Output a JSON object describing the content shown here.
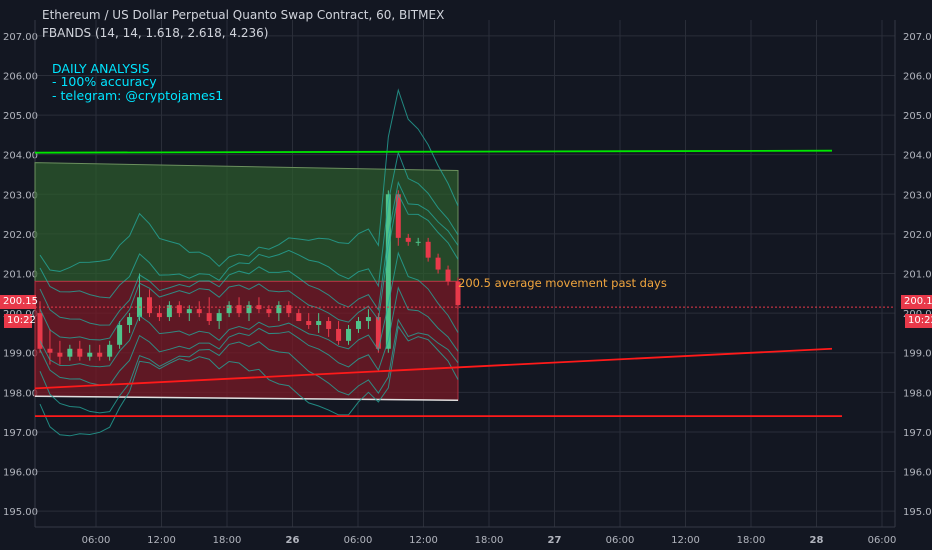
{
  "header": {
    "title": "Ethereum / US Dollar Perpetual Quanto Swap Contract, 60, BITMEX",
    "indicator": "FBANDS (14, 14, 1.618, 2.618, 4.236)"
  },
  "analysis": {
    "line1": "DAILY ANALYSIS",
    "line2": "- 100% accuracy",
    "line3": "- telegram: @cryptojames1"
  },
  "note": "200.5 average movement past days",
  "price_badge": {
    "value": "200.15",
    "time": "10:22"
  },
  "colors": {
    "background": "#131722",
    "grid": "#2a2e39",
    "up": "#4fc38a",
    "down": "#e8394a",
    "green_zone": "#2e5e2c",
    "red_zone": "#7a1a26",
    "band": "#26a69a",
    "annotation_text": "#00e5ff",
    "note_text": "#f0a53e"
  },
  "chart_data": {
    "type": "candlestick",
    "title": "Ethereum / US Dollar Perpetual Quanto Swap Contract, 60, BITMEX",
    "ylim": [
      194.6,
      207.4
    ],
    "y_ticks": [
      "207.00",
      "206.00",
      "205.00",
      "204.00",
      "203.00",
      "202.00",
      "201.00",
      "200.00",
      "199.00",
      "198.00",
      "197.00",
      "196.00",
      "195.00"
    ],
    "x_ticks": [
      "06:00",
      "12:00",
      "18:00",
      "26",
      "06:00",
      "12:00",
      "18:00",
      "27",
      "06:00",
      "12:00",
      "18:00",
      "28",
      "06:00"
    ],
    "candles": [
      {
        "o": 200.0,
        "h": 200.3,
        "l": 199.0,
        "c": 199.1
      },
      {
        "o": 199.1,
        "h": 199.6,
        "l": 198.7,
        "c": 199.0
      },
      {
        "o": 199.0,
        "h": 199.3,
        "l": 198.7,
        "c": 198.9
      },
      {
        "o": 198.9,
        "h": 199.2,
        "l": 198.8,
        "c": 199.1
      },
      {
        "o": 199.1,
        "h": 199.3,
        "l": 198.8,
        "c": 198.9
      },
      {
        "o": 198.9,
        "h": 199.2,
        "l": 198.8,
        "c": 199.0
      },
      {
        "o": 199.0,
        "h": 199.2,
        "l": 198.8,
        "c": 198.9
      },
      {
        "o": 198.9,
        "h": 199.3,
        "l": 198.8,
        "c": 199.2
      },
      {
        "o": 199.2,
        "h": 199.8,
        "l": 199.1,
        "c": 199.7
      },
      {
        "o": 199.7,
        "h": 200.0,
        "l": 199.5,
        "c": 199.9
      },
      {
        "o": 199.9,
        "h": 201.0,
        "l": 199.8,
        "c": 200.4
      },
      {
        "o": 200.4,
        "h": 200.6,
        "l": 199.9,
        "c": 200.0
      },
      {
        "o": 200.0,
        "h": 200.2,
        "l": 199.8,
        "c": 199.9
      },
      {
        "o": 199.9,
        "h": 200.3,
        "l": 199.8,
        "c": 200.2
      },
      {
        "o": 200.2,
        "h": 200.3,
        "l": 199.9,
        "c": 200.0
      },
      {
        "o": 200.0,
        "h": 200.2,
        "l": 199.8,
        "c": 200.1
      },
      {
        "o": 200.1,
        "h": 200.3,
        "l": 199.9,
        "c": 200.0
      },
      {
        "o": 200.0,
        "h": 200.4,
        "l": 199.7,
        "c": 199.8
      },
      {
        "o": 199.8,
        "h": 200.1,
        "l": 199.6,
        "c": 200.0
      },
      {
        "o": 200.0,
        "h": 200.3,
        "l": 199.9,
        "c": 200.2
      },
      {
        "o": 200.2,
        "h": 200.4,
        "l": 199.9,
        "c": 200.0
      },
      {
        "o": 200.0,
        "h": 200.3,
        "l": 199.8,
        "c": 200.2
      },
      {
        "o": 200.2,
        "h": 200.4,
        "l": 200.0,
        "c": 200.1
      },
      {
        "o": 200.1,
        "h": 200.2,
        "l": 199.9,
        "c": 200.0
      },
      {
        "o": 200.0,
        "h": 200.3,
        "l": 199.8,
        "c": 200.2
      },
      {
        "o": 200.2,
        "h": 200.3,
        "l": 199.9,
        "c": 200.0
      },
      {
        "o": 200.0,
        "h": 200.1,
        "l": 199.8,
        "c": 199.8
      },
      {
        "o": 199.8,
        "h": 200.0,
        "l": 199.6,
        "c": 199.7
      },
      {
        "o": 199.7,
        "h": 200.0,
        "l": 199.5,
        "c": 199.8
      },
      {
        "o": 199.8,
        "h": 199.9,
        "l": 199.4,
        "c": 199.6
      },
      {
        "o": 199.6,
        "h": 199.8,
        "l": 199.2,
        "c": 199.3
      },
      {
        "o": 199.3,
        "h": 199.7,
        "l": 199.2,
        "c": 199.6
      },
      {
        "o": 199.6,
        "h": 199.9,
        "l": 199.5,
        "c": 199.8
      },
      {
        "o": 199.8,
        "h": 200.1,
        "l": 199.6,
        "c": 199.9
      },
      {
        "o": 199.9,
        "h": 200.0,
        "l": 199.0,
        "c": 199.1
      },
      {
        "o": 199.1,
        "h": 203.1,
        "l": 199.0,
        "c": 203.0
      },
      {
        "o": 203.0,
        "h": 203.1,
        "l": 201.7,
        "c": 201.9
      },
      {
        "o": 201.9,
        "h": 202.0,
        "l": 201.7,
        "c": 201.8
      },
      {
        "o": 201.8,
        "h": 201.9,
        "l": 201.7,
        "c": 201.8
      },
      {
        "o": 201.8,
        "h": 201.9,
        "l": 201.3,
        "c": 201.4
      },
      {
        "o": 201.4,
        "h": 201.5,
        "l": 201.0,
        "c": 201.1
      },
      {
        "o": 201.1,
        "h": 201.2,
        "l": 200.7,
        "c": 200.8
      },
      {
        "o": 200.8,
        "h": 200.9,
        "l": 200.1,
        "c": 200.2
      }
    ],
    "support_resistance_lines": [
      {
        "color": "#00e600",
        "y1": 204.05,
        "y2": 204.1
      },
      {
        "color": "#ff1a1a",
        "y1": 198.1,
        "y2": 199.1
      },
      {
        "color": "#ff1a1a",
        "y1": 197.4,
        "y2": 197.4
      }
    ],
    "zones": [
      {
        "color": "green",
        "top_start": 203.8,
        "top_end": 203.6,
        "bottom": 200.8
      },
      {
        "color": "red",
        "top_start": 200.8,
        "top_end": 200.8,
        "bottom_start": 197.9,
        "bottom_end": 197.8
      }
    ],
    "current_price": 200.15,
    "reference_level": 200.5
  }
}
